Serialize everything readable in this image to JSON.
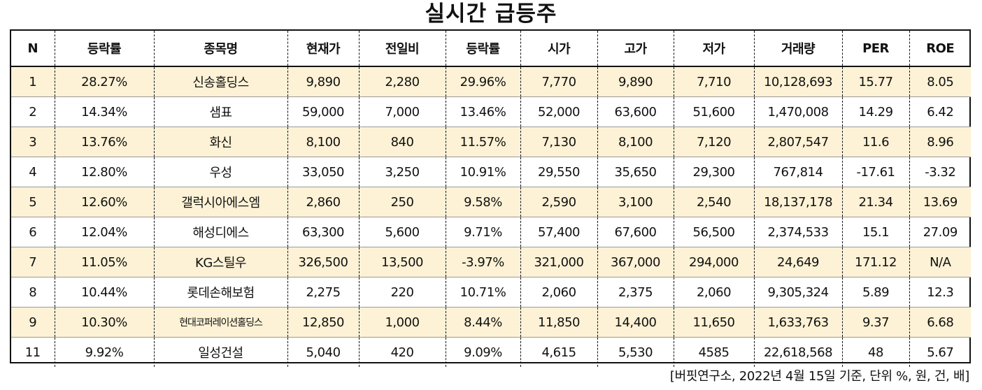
{
  "title": "실시간 급등주",
  "headers": [
    "N",
    "등락률",
    "종목명",
    "현재가",
    "전일비",
    "등락률",
    "시가",
    "고가",
    "저가",
    "거래량",
    "PER",
    "ROE"
  ],
  "rows": [
    [
      "1",
      "28.27%",
      "신송홀딩스",
      "9,890",
      "2,280",
      "29.96%",
      "7,770",
      "9,890",
      "7,710",
      "10,128,693",
      "15.77",
      "8.05"
    ],
    [
      "2",
      "14.34%",
      "샘표",
      "59,000",
      "7,000",
      "13.46%",
      "52,000",
      "63,600",
      "51,600",
      "1,470,008",
      "14.29",
      "6.42"
    ],
    [
      "3",
      "13.76%",
      "화신",
      "8,100",
      "840",
      "11.57%",
      "7,130",
      "8,100",
      "7,120",
      "2,807,547",
      "11.6",
      "8.96"
    ],
    [
      "4",
      "12.80%",
      "우성",
      "33,050",
      "3,250",
      "10.91%",
      "29,550",
      "35,650",
      "29,300",
      "767,814",
      "-17.61",
      "-3.32"
    ],
    [
      "5",
      "12.60%",
      "갤럭시아에스엠",
      "2,860",
      "250",
      "9.58%",
      "2,590",
      "3,100",
      "2,540",
      "18,137,178",
      "21.34",
      "13.69"
    ],
    [
      "6",
      "12.04%",
      "해성디에스",
      "63,300",
      "5,600",
      "9.71%",
      "57,400",
      "67,600",
      "56,500",
      "2,374,533",
      "15.1",
      "27.09"
    ],
    [
      "7",
      "11.05%",
      "KG스틸우",
      "326,500",
      "13,500",
      "-3.97%",
      "321,000",
      "367,000",
      "294,000",
      "24,649",
      "171.12",
      "N/A"
    ],
    [
      "8",
      "10.44%",
      "롯데손해보험",
      "2,275",
      "220",
      "10.71%",
      "2,060",
      "2,375",
      "2,060",
      "9,305,324",
      "5.89",
      "12.3"
    ],
    [
      "9",
      "10.30%",
      "현대코퍼레이션홀딩스",
      "12,850",
      "1,000",
      "8.44%",
      "11,850",
      "14,400",
      "11,650",
      "1,633,763",
      "9.37",
      "6.68"
    ],
    [
      "11",
      "9.92%",
      "일성건설",
      "5,040",
      "420",
      "9.09%",
      "4,615",
      "5,530",
      "4585",
      "22,618,568",
      "48",
      "5.67"
    ]
  ],
  "note": "[버핏연구소, 2022년 4월 15일 기준, 단위 %, 원, 건, 배]",
  "colors": {
    "row_highlight": "#fdf2d6",
    "border": "#111111",
    "text": "#111111"
  }
}
